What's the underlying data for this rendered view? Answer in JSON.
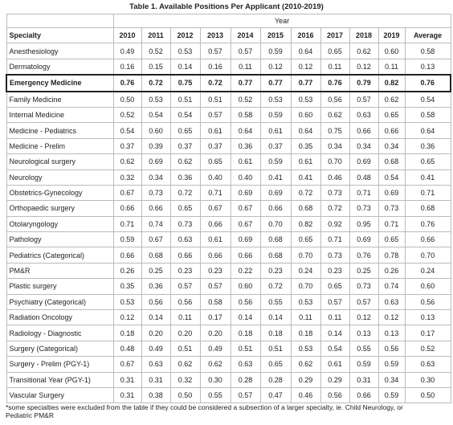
{
  "title": "Table 1. Available Positions Per Applicant (2010-2019)",
  "table": {
    "group_header": "Year",
    "header": [
      "Specialty",
      "2010",
      "2011",
      "2012",
      "2013",
      "2014",
      "2015",
      "2016",
      "2017",
      "2018",
      "2019",
      "Average"
    ],
    "highlighted_row": 2,
    "rows": [
      [
        "Anesthesiology",
        "0.49",
        "0.52",
        "0.53",
        "0.57",
        "0.57",
        "0.59",
        "0.64",
        "0.65",
        "0.62",
        "0.60",
        "0.58"
      ],
      [
        "Dermatology",
        "0.16",
        "0.15",
        "0.14",
        "0.16",
        "0.11",
        "0.12",
        "0.12",
        "0.11",
        "0.12",
        "0.11",
        "0.13"
      ],
      [
        "Emergency Medicine",
        "0.76",
        "0.72",
        "0.75",
        "0.72",
        "0.77",
        "0.77",
        "0.77",
        "0.76",
        "0.79",
        "0.82",
        "0.76"
      ],
      [
        "Family Medicine",
        "0.50",
        "0.53",
        "0.51",
        "0.51",
        "0.52",
        "0.53",
        "0.53",
        "0.56",
        "0.57",
        "0.62",
        "0.54"
      ],
      [
        "Internal Medicine",
        "0.52",
        "0.54",
        "0.54",
        "0.57",
        "0.58",
        "0.59",
        "0.60",
        "0.62",
        "0.63",
        "0.65",
        "0.58"
      ],
      [
        "Medicine - Pediatrics",
        "0.54",
        "0.60",
        "0.65",
        "0.61",
        "0.64",
        "0.61",
        "0.64",
        "0.75",
        "0.66",
        "0.66",
        "0.64"
      ],
      [
        "Medicine - Prelim",
        "0.37",
        "0.39",
        "0.37",
        "0.37",
        "0.36",
        "0.37",
        "0.35",
        "0.34",
        "0.34",
        "0.34",
        "0.36"
      ],
      [
        "Neurological surgery",
        "0.62",
        "0.69",
        "0.62",
        "0.65",
        "0.61",
        "0.59",
        "0.61",
        "0.70",
        "0.69",
        "0.68",
        "0.65"
      ],
      [
        "Neurology",
        "0.32",
        "0.34",
        "0.36",
        "0.40",
        "0.40",
        "0.41",
        "0.41",
        "0.46",
        "0.48",
        "0.54",
        "0.41"
      ],
      [
        "Obstetrics-Gynecology",
        "0.67",
        "0.73",
        "0.72",
        "0.71",
        "0.69",
        "0.69",
        "0.72",
        "0.73",
        "0.71",
        "0.69",
        "0.71"
      ],
      [
        "Orthopaedic surgery",
        "0.66",
        "0.66",
        "0.65",
        "0.67",
        "0.67",
        "0.66",
        "0.68",
        "0.72",
        "0.73",
        "0.73",
        "0.68"
      ],
      [
        "Otolaryngology",
        "0.71",
        "0.74",
        "0.73",
        "0.66",
        "0.67",
        "0.70",
        "0.82",
        "0.92",
        "0.95",
        "0.71",
        "0.76"
      ],
      [
        "Pathology",
        "0.59",
        "0.67",
        "0.63",
        "0.61",
        "0.69",
        "0.68",
        "0.65",
        "0.71",
        "0.69",
        "0.65",
        "0.66"
      ],
      [
        "Pediatrics (Categorical)",
        "0.66",
        "0.68",
        "0.66",
        "0.66",
        "0.66",
        "0.68",
        "0.70",
        "0.73",
        "0.76",
        "0.78",
        "0.70"
      ],
      [
        "PM&R",
        "0.26",
        "0.25",
        "0.23",
        "0.23",
        "0.22",
        "0.23",
        "0.24",
        "0.23",
        "0.25",
        "0.26",
        "0.24"
      ],
      [
        "Plastic surgery",
        "0.35",
        "0.36",
        "0.57",
        "0.57",
        "0.60",
        "0.72",
        "0.70",
        "0.65",
        "0.73",
        "0.74",
        "0.60"
      ],
      [
        "Psychiatry (Categorical)",
        "0.53",
        "0.56",
        "0.56",
        "0.58",
        "0.56",
        "0.55",
        "0.53",
        "0.57",
        "0.57",
        "0.63",
        "0.56"
      ],
      [
        "Radiation Oncology",
        "0.12",
        "0.14",
        "0.11",
        "0.17",
        "0.14",
        "0.14",
        "0.11",
        "0.11",
        "0.12",
        "0.12",
        "0.13"
      ],
      [
        "Radiology - Diagnostic",
        "0.18",
        "0.20",
        "0.20",
        "0.20",
        "0.18",
        "0.18",
        "0.18",
        "0.14",
        "0.13",
        "0.13",
        "0.17"
      ],
      [
        "Surgery (Categorical)",
        "0.48",
        "0.49",
        "0.51",
        "0.49",
        "0.51",
        "0.51",
        "0.53",
        "0.54",
        "0.55",
        "0.56",
        "0.52"
      ],
      [
        "Surgery - Prelim (PGY-1)",
        "0.67",
        "0.63",
        "0.62",
        "0.62",
        "0.63",
        "0.65",
        "0.62",
        "0.61",
        "0.59",
        "0.59",
        "0.63"
      ],
      [
        "Transitional Year (PGY-1)",
        "0.31",
        "0.31",
        "0.32",
        "0.30",
        "0.28",
        "0.28",
        "0.29",
        "0.29",
        "0.31",
        "0.34",
        "0.30"
      ],
      [
        "Vascular Surgery",
        "0.31",
        "0.38",
        "0.50",
        "0.55",
        "0.57",
        "0.47",
        "0.46",
        "0.56",
        "0.66",
        "0.59",
        "0.50"
      ]
    ]
  },
  "footnote": "*some specialties were excluded from the table if they could be considered a subsection of a larger specialty, ie. Child Neurology, or Pediatric PM&R"
}
